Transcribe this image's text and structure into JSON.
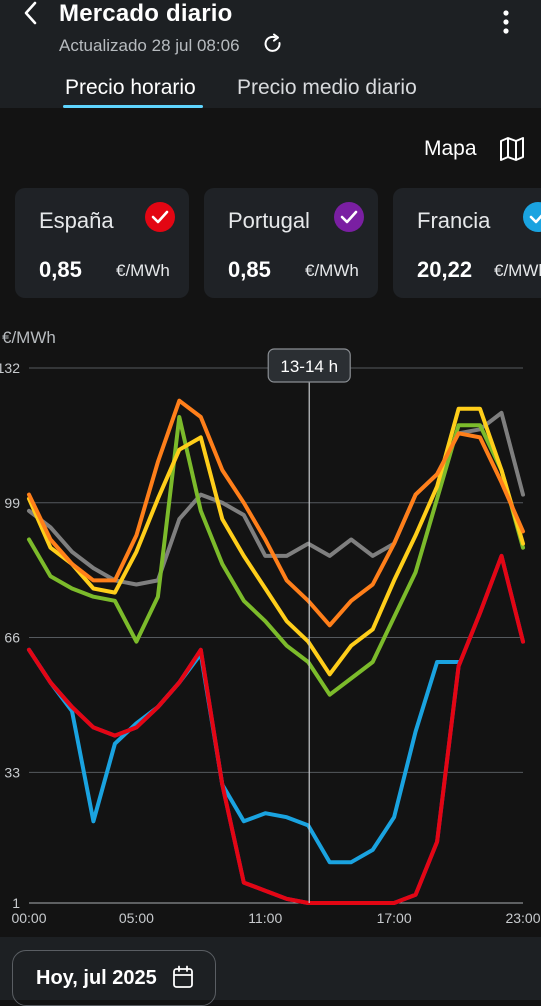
{
  "header": {
    "title": "Mercado diario",
    "updated": "Actualizado 28 jul 08:06",
    "icons": {
      "back": "chevron-left-icon",
      "refresh": "refresh-icon",
      "menu": "more-vertical-icon"
    }
  },
  "tabs": [
    {
      "label": "Precio horario",
      "active": true
    },
    {
      "label": "Precio medio diario",
      "active": false
    }
  ],
  "map": {
    "label": "Mapa",
    "icon": "map-icon"
  },
  "cards": [
    {
      "country": "España",
      "price": "0,85",
      "unit": "€/MWh",
      "color": "#e30613"
    },
    {
      "country": "Portugal",
      "price": "0,85",
      "unit": "€/MWh",
      "color": "#7a1fa2"
    },
    {
      "country": "Francia",
      "price": "20,22",
      "unit": "€/MWh",
      "color": "#1aa3e0"
    }
  ],
  "chart_data": {
    "type": "line",
    "ylabel": "€/MWh",
    "y_ticks": [
      "1",
      "33",
      "66",
      "99",
      "132"
    ],
    "x_ticks": [
      "00:00",
      "05:00",
      "11:00",
      "17:00",
      "23:00"
    ],
    "ylim": [
      1,
      132
    ],
    "xlim": [
      0,
      23
    ],
    "selected_label": "13-14 h",
    "selected_hour": 13,
    "hours": [
      0,
      1,
      2,
      3,
      4,
      5,
      6,
      7,
      8,
      9,
      10,
      11,
      12,
      13,
      14,
      15,
      16,
      17,
      18,
      19,
      20,
      21,
      22,
      23
    ],
    "series": [
      {
        "color": "#e30613",
        "values": [
          63,
          55,
          49,
          44,
          42,
          44,
          49,
          55,
          63,
          30,
          6,
          4,
          2,
          1,
          1,
          1,
          1,
          1,
          3,
          16,
          59,
          72,
          86,
          65
        ]
      },
      {
        "color": "#7a1fa2",
        "values": [
          63,
          55,
          49,
          44,
          42,
          44,
          49,
          55,
          63,
          30,
          6,
          4,
          2,
          1,
          1,
          1,
          1,
          1,
          3,
          16,
          59,
          72,
          86,
          65
        ]
      },
      {
        "color": "#1aa3e0",
        "values": [
          63,
          55,
          48,
          21,
          40,
          45,
          49,
          55,
          62,
          30,
          21,
          23,
          22,
          20,
          11,
          11,
          14,
          22,
          43,
          60,
          60,
          null,
          null,
          null
        ]
      },
      {
        "color": "#ff7f1a",
        "values": [
          101,
          90,
          84,
          80,
          80,
          91,
          109,
          124,
          120,
          107,
          99,
          90,
          80,
          75,
          69,
          75,
          79,
          89,
          101,
          106,
          116,
          115,
          104,
          92
        ]
      },
      {
        "color": "#ffce1a",
        "values": [
          100,
          88,
          84,
          78,
          77,
          87,
          100,
          112,
          115,
          95,
          86,
          78,
          70,
          65,
          57,
          64,
          68,
          80,
          91,
          103,
          122,
          122,
          107,
          89
        ]
      },
      {
        "color": "#7cbb2b",
        "values": [
          90,
          81,
          78,
          76,
          75,
          65,
          76,
          120,
          97,
          84,
          75,
          70,
          64,
          60,
          52,
          56,
          60,
          71,
          82,
          100,
          118,
          118,
          107,
          88
        ]
      },
      {
        "color": "#7f7f7f",
        "values": [
          97,
          93,
          87,
          83,
          80,
          79,
          80,
          95,
          101,
          99,
          96,
          86,
          86,
          89,
          86,
          90,
          86,
          89,
          101,
          106,
          116,
          117,
          121,
          101
        ]
      }
    ]
  },
  "footer": {
    "date_label": "Hoy, jul 2025",
    "icon": "calendar-icon"
  }
}
